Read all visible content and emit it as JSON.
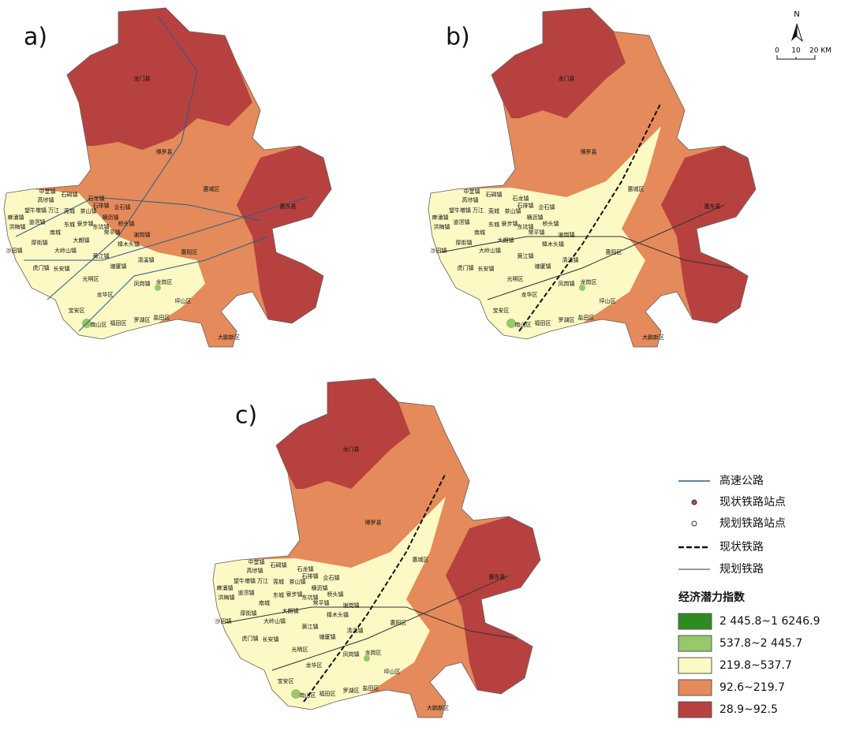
{
  "panels": [
    "a)",
    "b)",
    "c)"
  ],
  "places": [
    "龙门县",
    "博罗县",
    "惠城区",
    "惠东县",
    "中堂镇",
    "石碣镇",
    "高埗镇",
    "石龙镇",
    "望牛墩镇",
    "万江",
    "石排镇",
    "企石镇",
    "麻涌镇",
    "莞城",
    "茶山镇",
    "道滘镇",
    "东城",
    "寮步镇",
    "横沥镇",
    "东坑镇",
    "桥头镇",
    "洪梅镇",
    "南城",
    "常平镇",
    "谢岗镇",
    "厚街镇",
    "大朗镇",
    "樟木头镇",
    "沙田镇",
    "大岭山镇",
    "黄江镇",
    "惠阳区",
    "清溪镇",
    "塘厦镇",
    "虎门镇",
    "长安镇",
    "光明区",
    "凤岗镇",
    "龙岗区",
    "龙华区",
    "坪山区",
    "宝安区",
    "南山区",
    "福田区",
    "罗湖区",
    "盐田区",
    "大鹏新区"
  ],
  "north": "N",
  "scale_bar": [
    "0",
    "10",
    "20 KM"
  ],
  "legend": {
    "lines": [
      "高速公路",
      "现状铁路站点",
      "规划铁路站点",
      "现状铁路",
      "规划铁路"
    ],
    "title": "经济潜力指数",
    "classes": [
      {
        "label": "2 445.8~1 6246.9",
        "color": "#2e8b22"
      },
      {
        "label": "537.8~2 445.7",
        "color": "#97c86a"
      },
      {
        "label": "219.8~537.7",
        "color": "#fdf9c4"
      },
      {
        "label": "92.6~219.7",
        "color": "#e58a5a"
      },
      {
        "label": "28.9~92.5",
        "color": "#b7413f"
      }
    ]
  }
}
